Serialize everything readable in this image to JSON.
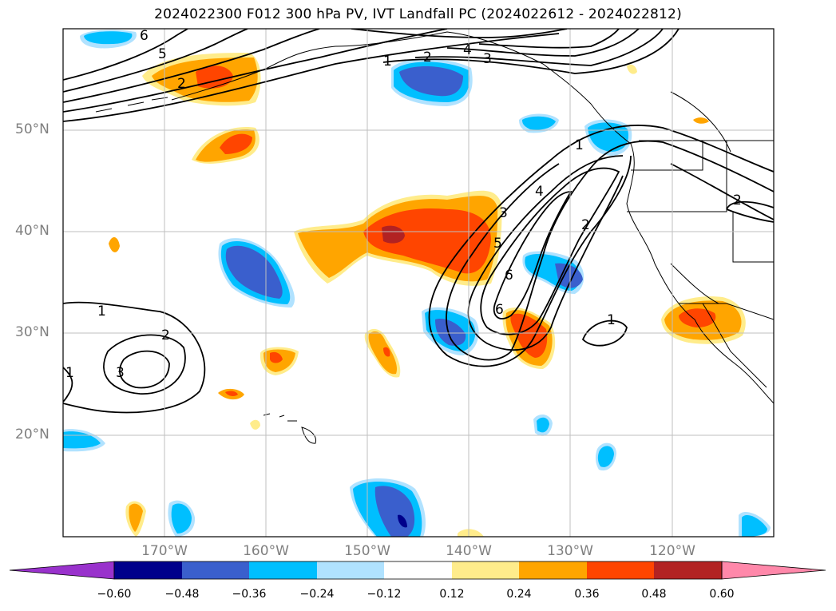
{
  "title": "2024022300 F012 300 hPa PV, IVT Landfall PC (2024022612 - 2024022812)",
  "map": {
    "lat_labels": [
      {
        "lat": 50,
        "label": "50°N"
      },
      {
        "lat": 40,
        "label": "40°N"
      },
      {
        "lat": 30,
        "label": "30°N"
      },
      {
        "lat": 20,
        "label": "20°N"
      }
    ],
    "lon_labels": [
      {
        "lon": -170,
        "label": "170°W"
      },
      {
        "lon": -160,
        "label": "160°W"
      },
      {
        "lon": -150,
        "label": "150°W"
      },
      {
        "lon": -140,
        "label": "140°W"
      },
      {
        "lon": -130,
        "label": "130°W"
      },
      {
        "lon": -120,
        "label": "120°W"
      }
    ],
    "extent": {
      "lon_min": -180,
      "lon_max": -110,
      "lat_min": 10,
      "lat_max": 60
    },
    "contour_labels": [
      "1",
      "2",
      "3",
      "4",
      "5",
      "6",
      "1",
      "2",
      "3",
      "4",
      "5",
      "6",
      "6",
      "1",
      "1",
      "2",
      "3",
      "2",
      "1",
      "2"
    ]
  },
  "colorbar": {
    "ticks": [
      "−0.60",
      "−0.48",
      "−0.36",
      "−0.24",
      "−0.12",
      "0.12",
      "0.24",
      "0.36",
      "0.48",
      "0.60"
    ],
    "colors": [
      "#9932cc",
      "#00008b",
      "#3a5fcd",
      "#00bfff",
      "#b0e2ff",
      "#ffffff",
      "#ffec8b",
      "#ffa500",
      "#ff4500",
      "#b22222",
      "#ff88aa"
    ]
  }
}
